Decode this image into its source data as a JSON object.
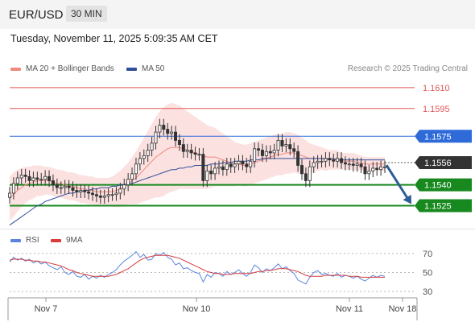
{
  "header": {
    "symbol": "EUR/USD",
    "timeframe": "30 MIN"
  },
  "timestamp": "Tuesday, November 11, 2025 5:09:35 AM CET",
  "legend": {
    "ma20_bollinger": {
      "label": "MA 20 + Bollinger Bands",
      "color": "#f08a80"
    },
    "ma50": {
      "label": "MA 50",
      "color": "#2e4f9a"
    }
  },
  "copyright": "Research © 2025 Trading Central",
  "colors": {
    "resistance": "#e05858",
    "pivot": "#2f6bd8",
    "support": "#17891f",
    "price": "#333333",
    "bollinger_fill": "#fbdcdc",
    "arrow": "#2d5d96",
    "rsi": "#5b84e0",
    "rsi_ma": "#d63d3d",
    "candle": "#333333"
  },
  "chart_data": [
    {
      "type": "candlestick",
      "title": "EUR/USD 30 MIN",
      "xlabel": "",
      "ylabel": "",
      "x_ticks": [
        "Nov 7",
        "Nov 10",
        "Nov 11",
        "Nov 18"
      ],
      "ylim": [
        1.1505,
        1.1625
      ],
      "levels": [
        {
          "value": 1.161,
          "label": "1.1610",
          "kind": "resistance"
        },
        {
          "value": 1.1595,
          "label": "1.1595",
          "kind": "resistance"
        },
        {
          "value": 1.1575,
          "label": "1.1575",
          "kind": "pivot"
        },
        {
          "value": 1.1556,
          "label": "1.1556",
          "kind": "price"
        },
        {
          "value": 1.154,
          "label": "1.1540",
          "kind": "support"
        },
        {
          "value": 1.1525,
          "label": "1.1525",
          "kind": "support"
        }
      ],
      "close": [
        1.1534,
        1.1541,
        1.1545,
        1.1547,
        1.1546,
        1.1543,
        1.1545,
        1.1544,
        1.1544,
        1.1546,
        1.1543,
        1.154,
        1.1538,
        1.1538,
        1.1539,
        1.1538,
        1.1536,
        1.1535,
        1.1536,
        1.1535,
        1.1534,
        1.1533,
        1.1532,
        1.1531,
        1.1532,
        1.1533,
        1.1533,
        1.1534,
        1.1537,
        1.154,
        1.1544,
        1.1548,
        1.1555,
        1.1559,
        1.1561,
        1.1565,
        1.157,
        1.1578,
        1.1583,
        1.158,
        1.1577,
        1.1578,
        1.1572,
        1.1569,
        1.1564,
        1.1565,
        1.1563,
        1.1562,
        1.1562,
        1.1543,
        1.155,
        1.1548,
        1.1552,
        1.1553,
        1.1551,
        1.1555,
        1.1553,
        1.1555,
        1.1557,
        1.1555,
        1.1553,
        1.1557,
        1.1566,
        1.1565,
        1.1561,
        1.1564,
        1.1563,
        1.1565,
        1.1572,
        1.1568,
        1.1569,
        1.1566,
        1.1564,
        1.1554,
        1.1548,
        1.1543,
        1.1553,
        1.1556,
        1.1557,
        1.1557,
        1.1559,
        1.1558,
        1.1557,
        1.1559,
        1.1556,
        1.1555,
        1.1555,
        1.1554,
        1.1555,
        1.1553,
        1.1548,
        1.155,
        1.1552,
        1.1551,
        1.1553,
        1.1553
      ],
      "ma20": [
        1.153,
        1.1533,
        1.1536,
        1.1538,
        1.154,
        1.1541,
        1.1542,
        1.1543,
        1.1543,
        1.1543,
        1.1543,
        1.1542,
        1.1541,
        1.1541,
        1.154,
        1.1539,
        1.1539,
        1.1538,
        1.1537,
        1.1537,
        1.1536,
        1.1536,
        1.1535,
        1.1535,
        1.1535,
        1.1535,
        1.1535,
        1.1536,
        1.1537,
        1.1539,
        1.1541,
        1.1543,
        1.1545,
        1.1548,
        1.1551,
        1.1554,
        1.1557,
        1.156,
        1.1562,
        1.1564,
        1.1566,
        1.1567,
        1.1567,
        1.1567,
        1.1566,
        1.1565,
        1.1564,
        1.1563,
        1.1562,
        1.1561,
        1.156,
        1.156,
        1.156,
        1.1559,
        1.1558,
        1.1557,
        1.1556,
        1.1555,
        1.1555,
        1.1554,
        1.1554,
        1.1555,
        1.1556,
        1.1557,
        1.1558,
        1.1559,
        1.156,
        1.1561,
        1.1562,
        1.1562,
        1.1563,
        1.1563,
        1.1563,
        1.1562,
        1.1561,
        1.156,
        1.1559,
        1.1559,
        1.1559,
        1.1559,
        1.1558,
        1.1558,
        1.1558,
        1.1558,
        1.1557,
        1.1557,
        1.1557,
        1.1557,
        1.1556,
        1.1556,
        1.1555,
        1.1555,
        1.1555,
        1.1555,
        1.1555,
        1.1555
      ],
      "bb_width": [
        0.0016,
        0.0016,
        0.0015,
        0.0014,
        0.0013,
        0.0012,
        0.0012,
        0.0011,
        0.0011,
        0.001,
        0.001,
        0.001,
        0.001,
        0.001,
        0.001,
        0.001,
        0.001,
        0.001,
        0.001,
        0.001,
        0.001,
        0.001,
        0.001,
        0.001,
        0.001,
        0.001,
        0.0011,
        0.0012,
        0.0013,
        0.0014,
        0.0015,
        0.0017,
        0.0019,
        0.0021,
        0.0023,
        0.0025,
        0.0027,
        0.0029,
        0.0031,
        0.0032,
        0.0032,
        0.0032,
        0.0031,
        0.003,
        0.0029,
        0.0028,
        0.0027,
        0.0026,
        0.0025,
        0.0024,
        0.0023,
        0.0022,
        0.0021,
        0.002,
        0.0019,
        0.0018,
        0.0017,
        0.0016,
        0.0015,
        0.0015,
        0.0015,
        0.0015,
        0.0015,
        0.0015,
        0.0015,
        0.0015,
        0.0015,
        0.0015,
        0.0015,
        0.0015,
        0.0015,
        0.0015,
        0.0014,
        0.0014,
        0.0013,
        0.0012,
        0.0011,
        0.001,
        0.0009,
        0.0008,
        0.0008,
        0.0007,
        0.0007,
        0.0007,
        0.0006,
        0.0006,
        0.0006,
        0.0006,
        0.0006,
        0.0005,
        0.0005,
        0.0005,
        0.0005,
        0.0005,
        0.0005,
        0.0005
      ],
      "ma50": [
        1.1511,
        1.1513,
        1.1515,
        1.1517,
        1.1519,
        1.1521,
        1.1523,
        1.1525,
        1.1526,
        1.1528,
        1.1529,
        1.153,
        1.1531,
        1.1532,
        1.1533,
        1.1534,
        1.1534,
        1.1535,
        1.1535,
        1.1536,
        1.1536,
        1.1537,
        1.1537,
        1.1538,
        1.1538,
        1.1538,
        1.1539,
        1.1539,
        1.154,
        1.154,
        1.1541,
        1.1541,
        1.1542,
        1.1543,
        1.1544,
        1.1545,
        1.1546,
        1.1547,
        1.1548,
        1.1549,
        1.155,
        1.1551,
        1.1551,
        1.1552,
        1.1552,
        1.1553,
        1.1553,
        1.1554,
        1.1554,
        1.1554,
        1.1554,
        1.1555,
        1.1555,
        1.1555,
        1.1556,
        1.1556,
        1.1556,
        1.1557,
        1.1557,
        1.1557,
        1.1557,
        1.1558,
        1.1558,
        1.1558,
        1.1559,
        1.1559,
        1.1559,
        1.1559,
        1.1559,
        1.1559,
        1.1559,
        1.1559,
        1.1559,
        1.1559,
        1.1559,
        1.1559,
        1.1559,
        1.1559,
        1.1559,
        1.1559,
        1.1559,
        1.1559,
        1.1559,
        1.1558,
        1.1558,
        1.1558,
        1.1558,
        1.1558,
        1.1558,
        1.1558,
        1.1558,
        1.1558,
        1.1558,
        1.1558,
        1.1558,
        1.1558
      ],
      "forecast_arrow": {
        "from": 1.1556,
        "to": 1.1525
      }
    },
    {
      "type": "line",
      "legend": [
        "RSI",
        "9MA"
      ],
      "ylim": [
        25,
        75
      ],
      "y_ticks": [
        70,
        50,
        30
      ],
      "x_ticks": [
        "Nov 7",
        "Nov 10",
        "Nov 11",
        "Nov 18"
      ],
      "series": [
        {
          "name": "RSI",
          "values": [
            61,
            66,
            63,
            65,
            62,
            64,
            60,
            62,
            59,
            61,
            57,
            55,
            53,
            56,
            50,
            48,
            51,
            46,
            45,
            48,
            43,
            46,
            44,
            47,
            45,
            48,
            50,
            53,
            58,
            62,
            65,
            68,
            72,
            66,
            69,
            63,
            64,
            70,
            68,
            71,
            66,
            64,
            58,
            60,
            54,
            55,
            52,
            50,
            49,
            40,
            48,
            45,
            50,
            49,
            46,
            51,
            48,
            50,
            53,
            49,
            46,
            50,
            58,
            55,
            50,
            54,
            52,
            55,
            59,
            54,
            56,
            52,
            49,
            42,
            40,
            38,
            45,
            50,
            52,
            48,
            49,
            47,
            46,
            49,
            45,
            47,
            46,
            44,
            46,
            43,
            41,
            44,
            47,
            45,
            47,
            46
          ]
        },
        {
          "name": "9MA",
          "values": [
            63,
            64,
            64,
            64,
            63,
            63,
            62,
            62,
            61,
            61,
            60,
            59,
            58,
            57,
            55,
            53,
            52,
            50,
            49,
            48,
            47,
            46,
            46,
            46,
            46,
            46,
            47,
            48,
            50,
            52,
            54,
            57,
            60,
            63,
            65,
            66,
            67,
            68,
            68,
            68,
            68,
            67,
            66,
            65,
            63,
            61,
            59,
            57,
            55,
            53,
            51,
            50,
            49,
            49,
            48,
            48,
            48,
            49,
            49,
            49,
            49,
            49,
            50,
            51,
            51,
            52,
            52,
            53,
            54,
            54,
            54,
            53,
            52,
            51,
            49,
            47,
            46,
            46,
            46,
            46,
            47,
            47,
            47,
            47,
            47,
            47,
            46,
            46,
            46,
            45,
            45,
            45,
            45,
            45,
            45,
            45
          ]
        }
      ]
    }
  ]
}
